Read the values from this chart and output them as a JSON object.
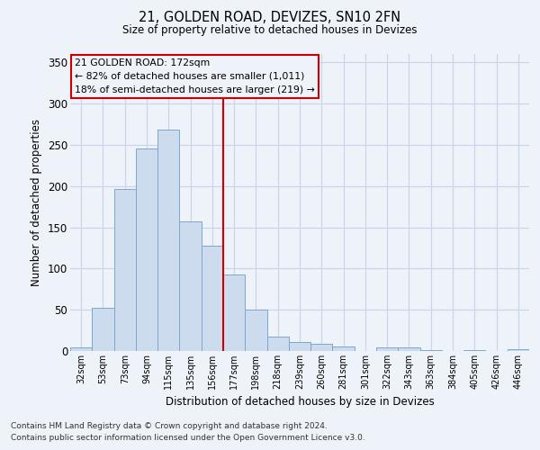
{
  "title": "21, GOLDEN ROAD, DEVIZES, SN10 2FN",
  "subtitle": "Size of property relative to detached houses in Devizes",
  "xlabel": "Distribution of detached houses by size in Devizes",
  "ylabel": "Number of detached properties",
  "footnote1": "Contains HM Land Registry data © Crown copyright and database right 2024.",
  "footnote2": "Contains public sector information licensed under the Open Government Licence v3.0.",
  "bar_color": "#ccdcee",
  "bar_edge_color": "#7aa8cc",
  "grid_color": "#c8d4e8",
  "annotation_box_color": "#cc0000",
  "vline_color": "#cc0000",
  "categories": [
    "32sqm",
    "53sqm",
    "73sqm",
    "94sqm",
    "115sqm",
    "135sqm",
    "156sqm",
    "177sqm",
    "198sqm",
    "218sqm",
    "239sqm",
    "260sqm",
    "281sqm",
    "301sqm",
    "322sqm",
    "343sqm",
    "363sqm",
    "384sqm",
    "405sqm",
    "426sqm",
    "446sqm"
  ],
  "values": [
    4,
    52,
    196,
    245,
    268,
    157,
    128,
    93,
    50,
    17,
    11,
    9,
    6,
    0,
    4,
    4,
    1,
    0,
    1,
    0,
    2
  ],
  "vline_position": 6.5,
  "annotation_line1": "21 GOLDEN ROAD: 172sqm",
  "annotation_line2": "← 82% of detached houses are smaller (1,011)",
  "annotation_line3": "18% of semi-detached houses are larger (219) →",
  "ylim": [
    0,
    360
  ],
  "yticks": [
    0,
    50,
    100,
    150,
    200,
    250,
    300,
    350
  ],
  "background_color": "#eef2f9"
}
